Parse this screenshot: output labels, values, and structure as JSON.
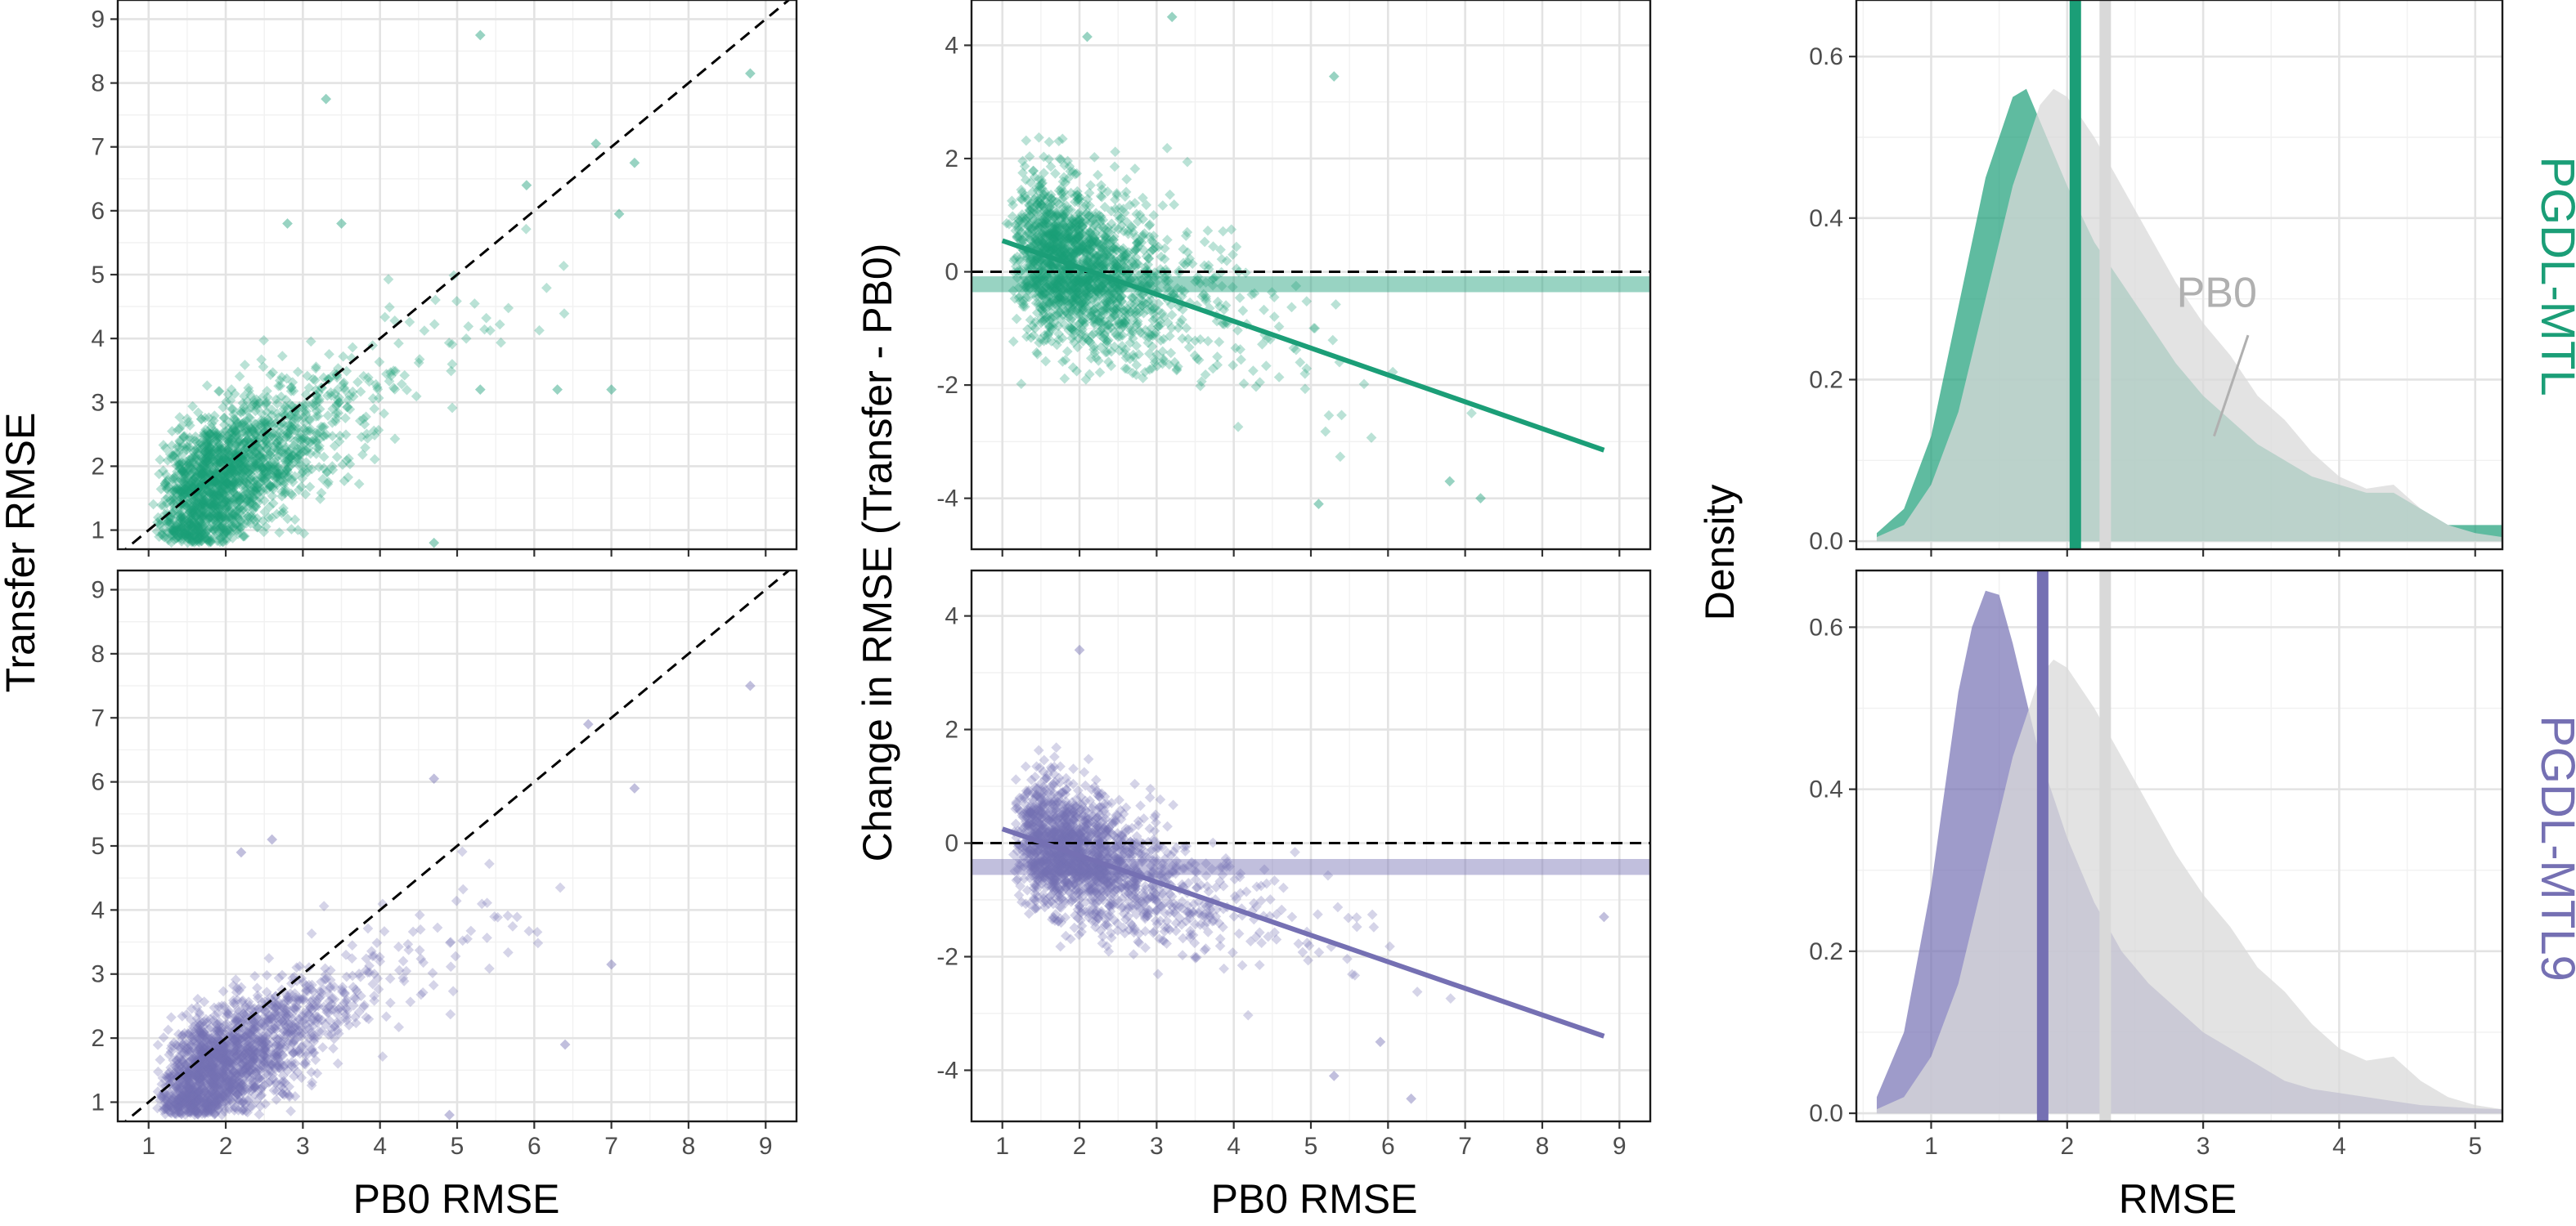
{
  "colors": {
    "pgdl_mtl": "#1b9e77",
    "pgdl_mtl9": "#7570b3",
    "pb0": "#d9d9d9"
  },
  "labels": {
    "scatter_xlabel": "PB0 RMSE",
    "scatter_ylabel": "Transfer RMSE",
    "change_xlabel": "PB0 RMSE",
    "change_ylabel": "Change in RMSE (Transfer - PB0)",
    "density_xlabel": "RMSE",
    "density_ylabel": "Density",
    "strip_top": "PGDL-MTL",
    "strip_bottom": "PGDL-MTL9",
    "pb0_annotation": "PB0"
  },
  "chart_data": [
    {
      "type": "scatter",
      "facet": "PGDL-MTL",
      "xlabel": "PB0 RMSE",
      "ylabel": "Transfer RMSE",
      "xlim": [
        0.6,
        9.4
      ],
      "ylim": [
        0.7,
        9.3
      ],
      "x_ticks": [
        1,
        2,
        3,
        4,
        5,
        6,
        7,
        8,
        9
      ],
      "y_ticks": [
        1,
        2,
        3,
        4,
        5,
        6,
        7,
        8,
        9
      ],
      "reference_line": "y = x (dashed)",
      "n_points_approx": 1850,
      "cloud": {
        "x_mode": 2.0,
        "y_mode": 2.0,
        "x_range": [
          0.9,
          8.8
        ],
        "y_range": [
          0.8,
          8.8
        ]
      },
      "outliers": [
        [
          5.3,
          8.75
        ],
        [
          3.3,
          7.75
        ],
        [
          8.8,
          8.15
        ],
        [
          6.8,
          7.05
        ],
        [
          7.1,
          5.95
        ],
        [
          7.3,
          6.75
        ],
        [
          5.9,
          6.4
        ],
        [
          7.0,
          3.2
        ],
        [
          6.3,
          3.2
        ],
        [
          5.3,
          3.2
        ],
        [
          2.8,
          5.8
        ],
        [
          3.5,
          5.8
        ],
        [
          4.7,
          0.8
        ]
      ]
    },
    {
      "type": "scatter",
      "facet": "PGDL-MTL9",
      "xlabel": "PB0 RMSE",
      "ylabel": "Transfer RMSE",
      "xlim": [
        0.6,
        9.4
      ],
      "ylim": [
        0.7,
        9.3
      ],
      "x_ticks": [
        1,
        2,
        3,
        4,
        5,
        6,
        7,
        8,
        9
      ],
      "y_ticks": [
        1,
        2,
        3,
        4,
        5,
        6,
        7,
        8,
        9
      ],
      "reference_line": "y = x (dashed)",
      "n_points_approx": 1850,
      "cloud": {
        "x_mode": 2.0,
        "y_mode": 1.6,
        "x_range": [
          0.9,
          8.8
        ],
        "y_range": [
          0.8,
          7.5
        ]
      },
      "outliers": [
        [
          8.8,
          7.5
        ],
        [
          6.7,
          6.9
        ],
        [
          7.3,
          5.9
        ],
        [
          7.0,
          3.15
        ],
        [
          6.4,
          1.9
        ],
        [
          4.7,
          6.05
        ],
        [
          4.9,
          0.8
        ],
        [
          2.6,
          5.1
        ],
        [
          2.2,
          4.9
        ]
      ]
    },
    {
      "type": "scatter",
      "facet": "PGDL-MTL",
      "xlabel": "PB0 RMSE",
      "ylabel": "Change in RMSE (Transfer - PB0)",
      "xlim": [
        0.6,
        9.4
      ],
      "ylim": [
        -4.9,
        4.8
      ],
      "x_ticks": [
        1,
        2,
        3,
        4,
        5,
        6,
        7,
        8,
        9
      ],
      "y_ticks": [
        -4,
        -2,
        0,
        2,
        4
      ],
      "zero_line": "dashed",
      "mean_change_band": -0.22,
      "regression_line": {
        "x": [
          1.0,
          8.8
        ],
        "y": [
          0.55,
          -3.15
        ]
      },
      "n_points_approx": 1850,
      "outliers": [
        [
          2.1,
          4.15
        ],
        [
          3.2,
          4.5
        ],
        [
          5.3,
          3.45
        ],
        [
          7.2,
          -4.0
        ],
        [
          5.1,
          -4.1
        ],
        [
          6.8,
          -3.7
        ]
      ]
    },
    {
      "type": "scatter",
      "facet": "PGDL-MTL9",
      "xlabel": "PB0 RMSE",
      "ylabel": "Change in RMSE (Transfer - PB0)",
      "xlim": [
        0.6,
        9.4
      ],
      "ylim": [
        -4.9,
        4.8
      ],
      "x_ticks": [
        1,
        2,
        3,
        4,
        5,
        6,
        7,
        8,
        9
      ],
      "y_ticks": [
        -4,
        -2,
        0,
        2,
        4
      ],
      "zero_line": "dashed",
      "mean_change_band": -0.42,
      "regression_line": {
        "x": [
          1.0,
          8.8
        ],
        "y": [
          0.25,
          -3.4
        ]
      },
      "n_points_approx": 1850,
      "outliers": [
        [
          2.0,
          3.4
        ],
        [
          6.3,
          -4.5
        ],
        [
          5.3,
          -4.1
        ],
        [
          8.8,
          -1.3
        ],
        [
          5.9,
          -3.5
        ]
      ]
    },
    {
      "type": "area",
      "facet": "PGDL-MTL",
      "xlabel": "RMSE",
      "ylabel": "Density",
      "xlim": [
        0.45,
        5.2
      ],
      "ylim": [
        -0.01,
        0.67
      ],
      "x_ticks": [
        1,
        2,
        3,
        4,
        5
      ],
      "y_ticks": [
        0.0,
        0.2,
        0.4,
        0.6
      ],
      "series": [
        {
          "name": "PGDL-MTL",
          "x": [
            0.6,
            0.8,
            1.0,
            1.2,
            1.4,
            1.6,
            1.7,
            1.8,
            2.0,
            2.2,
            2.4,
            2.6,
            2.8,
            3.0,
            3.2,
            3.4,
            3.6,
            3.8,
            4.0,
            4.2,
            4.4,
            4.6,
            4.8,
            5.0,
            5.2
          ],
          "y": [
            0.01,
            0.04,
            0.13,
            0.29,
            0.45,
            0.55,
            0.56,
            0.52,
            0.44,
            0.37,
            0.32,
            0.27,
            0.22,
            0.18,
            0.15,
            0.12,
            0.1,
            0.08,
            0.07,
            0.06,
            0.06,
            0.04,
            0.02,
            0.02,
            0.02
          ]
        },
        {
          "name": "PB0",
          "x": [
            0.6,
            0.8,
            1.0,
            1.2,
            1.4,
            1.6,
            1.8,
            1.9,
            2.0,
            2.2,
            2.4,
            2.6,
            2.8,
            3.0,
            3.2,
            3.4,
            3.6,
            3.8,
            4.0,
            4.2,
            4.4,
            4.6,
            4.8,
            5.0,
            5.2
          ],
          "y": [
            0.005,
            0.02,
            0.07,
            0.16,
            0.3,
            0.44,
            0.54,
            0.56,
            0.55,
            0.5,
            0.44,
            0.38,
            0.32,
            0.27,
            0.23,
            0.18,
            0.15,
            0.11,
            0.08,
            0.065,
            0.07,
            0.04,
            0.02,
            0.01,
            0.005
          ]
        }
      ],
      "vlines": [
        {
          "name": "PGDL-MTL",
          "x": 2.06
        },
        {
          "name": "PB0",
          "x": 2.28
        }
      ],
      "annotation": {
        "text": "PB0",
        "x": 3.1,
        "y": 0.29
      }
    },
    {
      "type": "area",
      "facet": "PGDL-MTL9",
      "xlabel": "RMSE",
      "ylabel": "Density",
      "xlim": [
        0.45,
        5.2
      ],
      "ylim": [
        -0.01,
        0.67
      ],
      "x_ticks": [
        1,
        2,
        3,
        4,
        5
      ],
      "y_ticks": [
        0.0,
        0.2,
        0.4,
        0.6
      ],
      "series": [
        {
          "name": "PGDL-MTL9",
          "x": [
            0.6,
            0.8,
            1.0,
            1.1,
            1.2,
            1.3,
            1.4,
            1.5,
            1.6,
            1.8,
            2.0,
            2.2,
            2.4,
            2.6,
            2.8,
            3.0,
            3.2,
            3.4,
            3.6,
            3.8,
            4.0,
            4.2,
            4.4,
            4.6,
            4.8,
            5.0,
            5.2
          ],
          "y": [
            0.02,
            0.1,
            0.28,
            0.4,
            0.52,
            0.6,
            0.645,
            0.64,
            0.58,
            0.44,
            0.34,
            0.26,
            0.2,
            0.16,
            0.13,
            0.1,
            0.08,
            0.06,
            0.04,
            0.03,
            0.025,
            0.02,
            0.015,
            0.01,
            0.008,
            0.006,
            0.005
          ]
        },
        {
          "name": "PB0",
          "x": [
            0.6,
            0.8,
            1.0,
            1.2,
            1.4,
            1.6,
            1.8,
            1.9,
            2.0,
            2.2,
            2.4,
            2.6,
            2.8,
            3.0,
            3.2,
            3.4,
            3.6,
            3.8,
            4.0,
            4.2,
            4.4,
            4.6,
            4.8,
            5.0,
            5.2
          ],
          "y": [
            0.005,
            0.02,
            0.07,
            0.16,
            0.3,
            0.44,
            0.54,
            0.56,
            0.55,
            0.5,
            0.44,
            0.38,
            0.32,
            0.27,
            0.23,
            0.18,
            0.15,
            0.11,
            0.08,
            0.065,
            0.07,
            0.04,
            0.02,
            0.01,
            0.005
          ]
        }
      ],
      "vlines": [
        {
          "name": "PGDL-MTL9",
          "x": 1.82
        },
        {
          "name": "PB0",
          "x": 2.28
        }
      ]
    }
  ]
}
